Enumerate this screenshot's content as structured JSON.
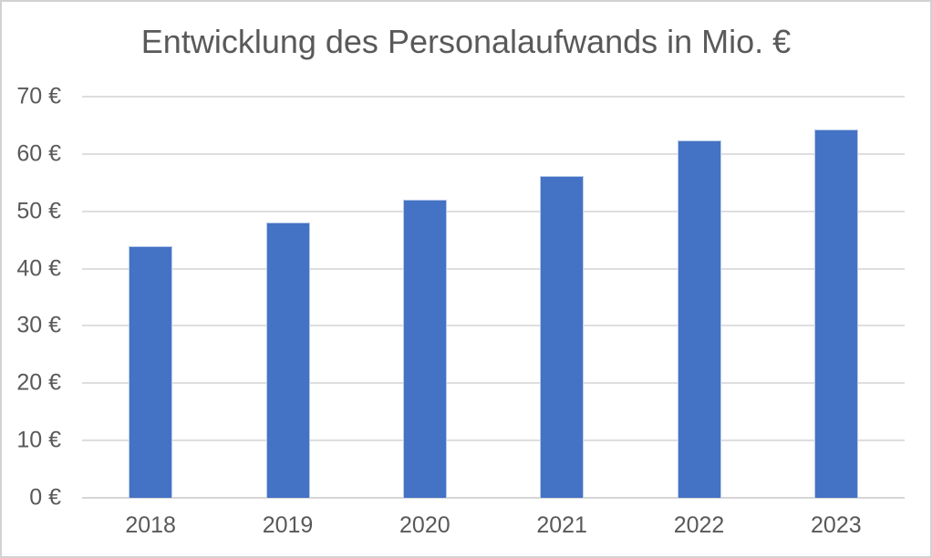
{
  "chart_data": {
    "type": "bar",
    "title": "Entwicklung des Personalaufwands in Mio. €",
    "categories": [
      "2018",
      "2019",
      "2020",
      "2021",
      "2022",
      "2023"
    ],
    "values": [
      43.9,
      48.1,
      52.0,
      56.2,
      62.4,
      64.3
    ],
    "xlabel": "",
    "ylabel": "",
    "ylim": [
      0,
      70
    ],
    "y_ticks": [
      {
        "value": 0,
        "label": "0 €"
      },
      {
        "value": 10,
        "label": "10 €"
      },
      {
        "value": 20,
        "label": "20 €"
      },
      {
        "value": 30,
        "label": "30 €"
      },
      {
        "value": 40,
        "label": "40 €"
      },
      {
        "value": 50,
        "label": "50 €"
      },
      {
        "value": 60,
        "label": "60 €"
      },
      {
        "value": 70,
        "label": "70 €"
      }
    ],
    "grid": true,
    "legend": false,
    "colors": {
      "bar": "#4472c4",
      "bar_border": "#b9cbe8",
      "gridline": "#dedede",
      "axis_line": "#d6d6d6",
      "text": "#595959",
      "frame_border": "#d2d2d2",
      "background": "#ffffff"
    }
  }
}
